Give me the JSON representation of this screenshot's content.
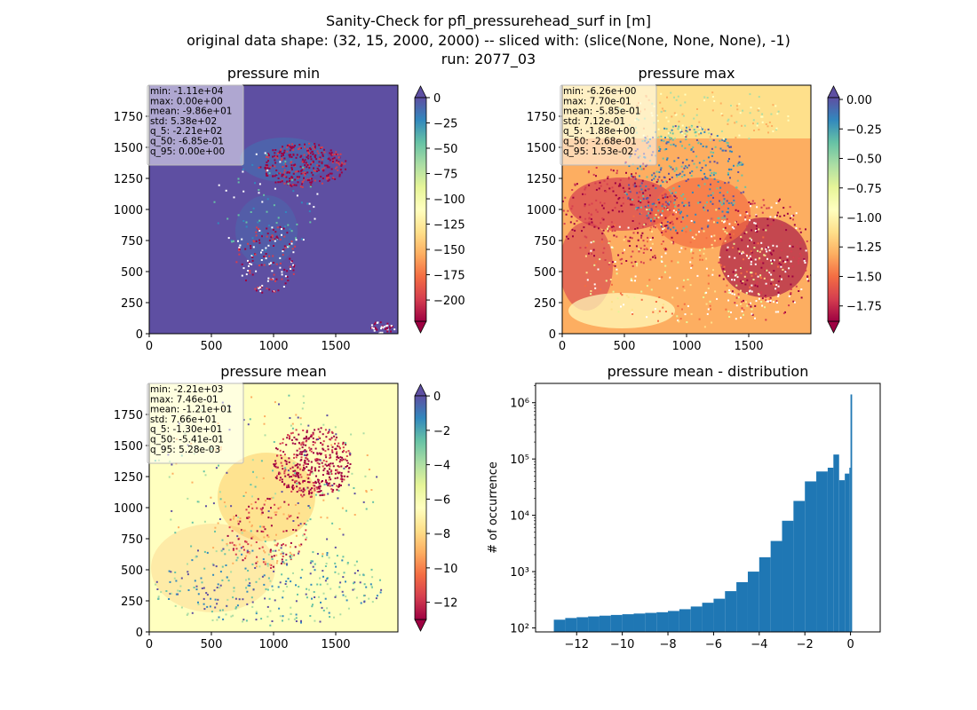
{
  "figure": {
    "title_lines": [
      "Sanity-Check for pfl_pressurehead_surf in [m]",
      "original data shape: (32, 15, 2000, 2000) -- sliced with: (slice(None, None, None), -1)",
      "run: 2077_03"
    ]
  },
  "colormap_stops": [
    "#9e0142",
    "#d53e4f",
    "#f46d43",
    "#fdae61",
    "#fee08b",
    "#ffffbf",
    "#e6f598",
    "#abdda4",
    "#66c2a5",
    "#3288bd",
    "#5e4fa2"
  ],
  "panels": {
    "pmin": {
      "title": "pressure min",
      "x_ticks": [
        "0",
        "500",
        "1000",
        "1500"
      ],
      "y_ticks": [
        "0",
        "250",
        "500",
        "750",
        "1000",
        "1250",
        "1500",
        "1750"
      ],
      "stats": [
        "min: -1.11e+04",
        "max: 0.00e+00",
        "mean: -9.86e+01",
        "std: 5.38e+02",
        "q_5: -2.21e+02",
        "q_50: -6.85e-01",
        "q_95: 0.00e+00"
      ],
      "colorbar_ticks": [
        "0",
        "−25",
        "−50",
        "−75",
        "−100",
        "−125",
        "−150",
        "−175",
        "−200"
      ],
      "colorbar_range": [
        -221,
        0
      ],
      "colorbar_extend": "both"
    },
    "pmax": {
      "title": "pressure max",
      "x_ticks": [
        "0",
        "500",
        "1000",
        "1500"
      ],
      "y_ticks": [
        "0",
        "250",
        "500",
        "750",
        "1000",
        "1250",
        "1500",
        "1750"
      ],
      "stats": [
        "min: -6.26e+00",
        "max: 7.70e-01",
        "mean: -5.85e-01",
        "std: 7.12e-01",
        "q_5: -1.88e+00",
        "q_50: -2.68e-01",
        "q_95: 1.53e-02"
      ],
      "colorbar_ticks": [
        "0.00",
        "−0.25",
        "−0.50",
        "−0.75",
        "−1.00",
        "−1.25",
        "−1.50",
        "−1.75"
      ],
      "colorbar_range": [
        -1.88,
        0.0153
      ],
      "colorbar_extend": "both"
    },
    "pmean": {
      "title": "pressure mean",
      "x_ticks": [
        "0",
        "500",
        "1000",
        "1500"
      ],
      "y_ticks": [
        "0",
        "250",
        "500",
        "750",
        "1000",
        "1250",
        "1500",
        "1750"
      ],
      "stats": [
        "min: -2.21e+03",
        "max: 7.46e-01",
        "mean: -1.21e+01",
        "std: 7.66e+01",
        "q_5: -1.30e+01",
        "q_50: -5.41e-01",
        "q_95: 5.28e-03"
      ],
      "colorbar_ticks": [
        "0",
        "−2",
        "−4",
        "−6",
        "−8",
        "−10",
        "−12"
      ],
      "colorbar_range": [
        -13.0,
        0.00528
      ],
      "colorbar_extend": "both"
    }
  },
  "chart_data": {
    "type": "bar",
    "title": "pressure mean - distribution",
    "xlabel": "",
    "ylabel": "# of occurrence",
    "x_ticks": [
      "−12",
      "−10",
      "−8",
      "−6",
      "−4",
      "−2",
      "0"
    ],
    "y_ticks": [
      "10²",
      "10³",
      "10⁴",
      "10⁵",
      "10⁶"
    ],
    "xlim": [
      -13.8,
      1.3
    ],
    "ylim": [
      85,
      2200000
    ],
    "y_scale": "log",
    "bar_color": "#1f77b4",
    "bins": [
      [
        -13.0,
        140
      ],
      [
        -12.5,
        150
      ],
      [
        -12.0,
        155
      ],
      [
        -11.5,
        160
      ],
      [
        -11.0,
        165
      ],
      [
        -10.5,
        170
      ],
      [
        -10.0,
        175
      ],
      [
        -9.5,
        180
      ],
      [
        -9.0,
        185
      ],
      [
        -8.5,
        190
      ],
      [
        -8.0,
        200
      ],
      [
        -7.5,
        215
      ],
      [
        -7.0,
        240
      ],
      [
        -6.5,
        280
      ],
      [
        -6.0,
        330
      ],
      [
        -5.5,
        450
      ],
      [
        -5.0,
        650
      ],
      [
        -4.5,
        1000
      ],
      [
        -4.0,
        1800
      ],
      [
        -3.5,
        3500
      ],
      [
        -3.0,
        8000
      ],
      [
        -2.5,
        18000
      ],
      [
        -2.0,
        40000
      ],
      [
        -1.5,
        60000
      ],
      [
        -1.0,
        70000
      ],
      [
        -0.75,
        120000
      ],
      [
        -0.5,
        42000
      ],
      [
        -0.25,
        55000
      ],
      [
        -0.05,
        70000
      ],
      [
        0.0,
        1400000
      ]
    ]
  }
}
